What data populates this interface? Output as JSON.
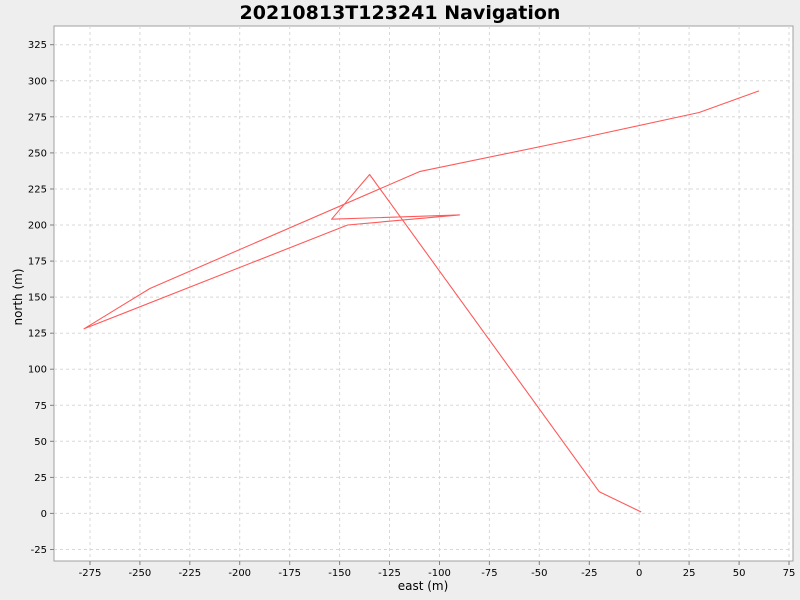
{
  "chart_data": {
    "type": "line",
    "title": "20210813T123241 Navigation",
    "xlabel": "east (m)",
    "ylabel": "north (m)",
    "xlim": [
      -293,
      77
    ],
    "ylim": [
      -33,
      338
    ],
    "x_ticks": [
      -275,
      -250,
      -225,
      -200,
      -175,
      -150,
      -125,
      -100,
      -75,
      -50,
      -25,
      0,
      25,
      50,
      75
    ],
    "y_ticks": [
      -25,
      0,
      25,
      50,
      75,
      100,
      125,
      150,
      175,
      200,
      225,
      250,
      275,
      300,
      325
    ],
    "grid": true,
    "series": [
      {
        "color": "#ff5a5a",
        "points": [
          [
            1,
            1
          ],
          [
            -20,
            15
          ],
          [
            -135,
            235
          ],
          [
            -154,
            204
          ],
          [
            -90,
            207
          ],
          [
            -146,
            200
          ],
          [
            -278,
            128
          ],
          [
            -245,
            156
          ],
          [
            -110,
            237
          ],
          [
            -30,
            260
          ],
          [
            30,
            278
          ],
          [
            60,
            293
          ]
        ]
      }
    ]
  }
}
